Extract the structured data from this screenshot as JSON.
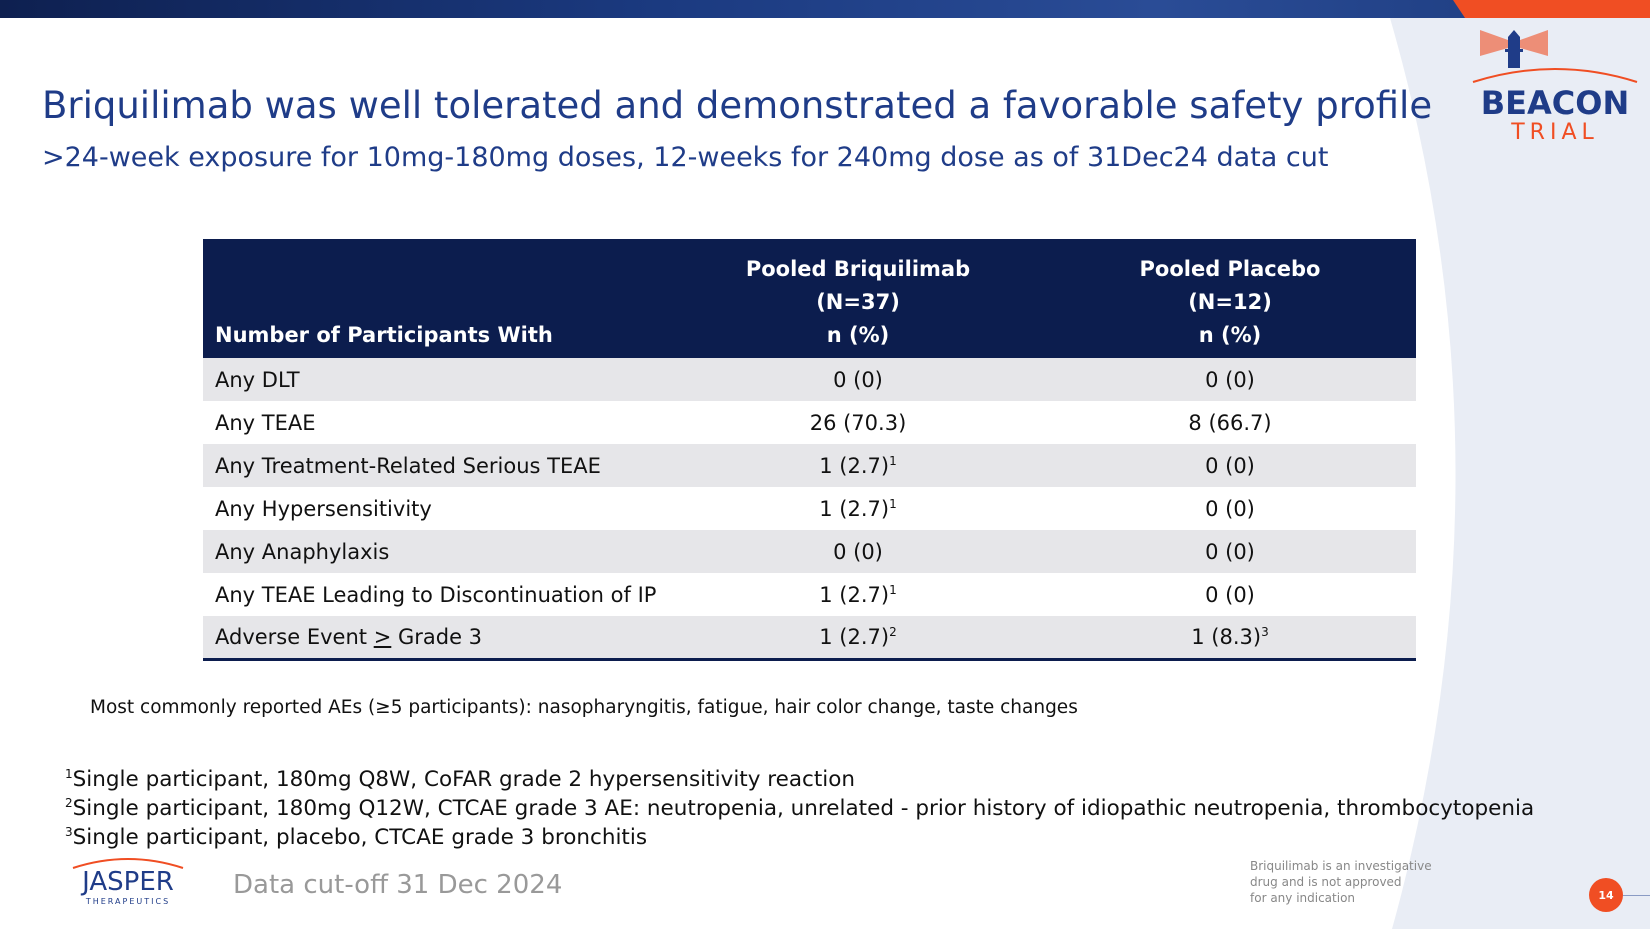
{
  "title": "Briquilimab was well tolerated and demonstrated a favorable safety profile",
  "subtitle": ">24-week exposure for 10mg-180mg doses, 12-weeks for 240mg dose as of 31Dec24 data cut",
  "logo": {
    "line1": "BEACON",
    "line2": "TRIAL"
  },
  "table": {
    "headers": {
      "c0": "Number of Participants With",
      "c1": [
        "Pooled Briquilimab",
        "(N=37)",
        "n (%)"
      ],
      "c2": [
        "Pooled Placebo",
        "(N=12)",
        "n (%)"
      ]
    },
    "rows": [
      {
        "label": "Any DLT",
        "v1": "0 (0)",
        "s1": "",
        "v2": "0 (0)",
        "s2": ""
      },
      {
        "label": "Any TEAE",
        "v1": "26 (70.3)",
        "s1": "",
        "v2": "8 (66.7)",
        "s2": ""
      },
      {
        "label": "Any Treatment-Related Serious TEAE",
        "v1": "1 (2.7)",
        "s1": "1",
        "v2": "0 (0)",
        "s2": ""
      },
      {
        "label": "Any Hypersensitivity",
        "v1": "1 (2.7)",
        "s1": "1",
        "v2": "0 (0)",
        "s2": ""
      },
      {
        "label": "Any Anaphylaxis",
        "v1": "0 (0)",
        "s1": "",
        "v2": "0 (0)",
        "s2": ""
      },
      {
        "label": "Any TEAE Leading to Discontinuation of IP",
        "v1": "1 (2.7)",
        "s1": "1",
        "v2": "0 (0)",
        "s2": ""
      },
      {
        "label_a": "Adverse Event ",
        "label_b": ">",
        "label_c": " Grade 3",
        "v1": "1 (2.7)",
        "s1": "2",
        "v2": "1 (8.3)",
        "s2": "3"
      }
    ]
  },
  "note": "Most commonly reported AEs (≥5 participants): nasopharyngitis, fatigue, hair color change, taste changes",
  "footnotes": [
    {
      "n": "1",
      "text": "Single participant, 180mg Q8W, CoFAR grade 2 hypersensitivity reaction"
    },
    {
      "n": "2",
      "text": "Single participant, 180mg Q12W, CTCAE grade 3 AE: neutropenia, unrelated - prior history of idiopathic neutropenia, thrombocytopenia"
    },
    {
      "n": "3",
      "text": "Single participant, placebo, CTCAE grade 3 bronchitis"
    }
  ],
  "footer": {
    "company": "JASPER",
    "company_sub": "THERAPEUTICS",
    "cutoff": "Data cut-off 31 Dec 2024",
    "disclaimer": [
      "Briquilimab is an investigative",
      "drug and is not approved",
      "for any indication"
    ],
    "page": "14"
  },
  "colors": {
    "navy": "#0c1d4e",
    "title": "#1f3c88",
    "orange": "#f04e23",
    "stripe": "#e6e6e9"
  }
}
